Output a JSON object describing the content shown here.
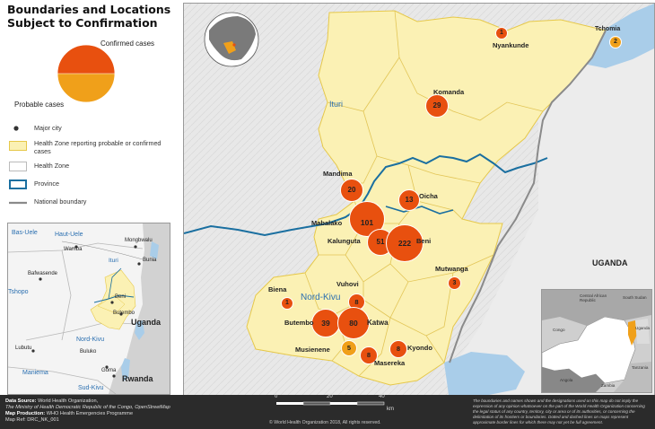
{
  "title": {
    "line1": "Boundaries and Locations",
    "line2": "Subject to Confirmation"
  },
  "pie_legend": {
    "confirmed_label": "Confirmed cases",
    "probable_label": "Probable cases",
    "confirmed_color": "#e8500f",
    "probable_color": "#f0a01a"
  },
  "legend": {
    "items": [
      {
        "icon": "city-dot-icon",
        "label": "Major city"
      },
      {
        "icon": "health-zone-affected-swatch",
        "label": "Health Zone reporting probable or confirmed cases"
      },
      {
        "icon": "health-zone-swatch",
        "label": "Health Zone"
      },
      {
        "icon": "province-line-icon",
        "label": "Province"
      },
      {
        "icon": "national-boundary-line-icon",
        "label": "National boundary"
      }
    ]
  },
  "colors": {
    "affected_zone": "#fbf1b4",
    "affected_zone_border": "#e6c84a",
    "province_line": "#1a6fa0",
    "national_boundary": "#8a8a8a",
    "water": "#a9cde9",
    "circle_fill": "#e8500f",
    "circle_probable": "#f0a01a",
    "terrain": "#e6e6e6"
  },
  "main_map": {
    "province_labels": [
      "Ituri",
      "Nord-Kivu"
    ],
    "country_label": "UGANDA",
    "localities": [
      {
        "name": "Nyankunde",
        "count": "1"
      },
      {
        "name": "Tchomia",
        "count": "2"
      },
      {
        "name": "Komanda",
        "count": "29"
      },
      {
        "name": "Mandima",
        "count": "20"
      },
      {
        "name": "Oicha",
        "count": "13"
      },
      {
        "name": "Mabalako",
        "count": "101"
      },
      {
        "name": "Kalunguta",
        "count": "51"
      },
      {
        "name": "Beni",
        "count": "222"
      },
      {
        "name": "Mutwanga",
        "count": "3"
      },
      {
        "name": "Biena",
        "count": "1"
      },
      {
        "name": "Vuhovi",
        "count": "8"
      },
      {
        "name": "Butembo",
        "count": "39"
      },
      {
        "name": "Katwa",
        "count": "80"
      },
      {
        "name": "Musienene",
        "count": "5"
      },
      {
        "name": "Kyondo",
        "count": "8"
      },
      {
        "name": "Masereka",
        "count": "8"
      }
    ]
  },
  "inset_left": {
    "province_labels": [
      "Bas-Uele",
      "Haut-Uele",
      "Ituri",
      "Tshopo",
      "Nord-Kivu",
      "Maniema",
      "Sud-Kivu"
    ],
    "country_labels": [
      "Uganda",
      "Rwanda"
    ],
    "cities": [
      "Wamba",
      "Mongbwalu",
      "Bunia",
      "Bafwasende",
      "Beni",
      "Butembo",
      "Lubutu",
      "Goma",
      "Buluko"
    ]
  },
  "inset_right": {
    "country_labels": [
      "Central African Republic",
      "South Sudan",
      "Congo",
      "Uganda",
      "Angola",
      "Zambia",
      "Tanzania"
    ]
  },
  "scale_bar": {
    "ticks": [
      "0",
      "20",
      "40"
    ],
    "unit": "km"
  },
  "footer": {
    "data_source_label": "Data Source:",
    "data_source_text": "World Health Organization,",
    "data_source_line2": "The Ministry of Health Democratic Republic of the Congo, OpenStreetMap",
    "production_label": "Map Production:",
    "production_text": "WHO Health Emergencies Programme",
    "map_id": "Map Ref: DRC_NK_001",
    "disclaimer": "The boundaries and names shown and the designations used on this map do not imply the expression of any opinion whatsoever on the part of the World Health Organization concerning the legal status of any country, territory, city or area or of its authorities, or concerning the delimitation of its frontiers or boundaries. Dotted and dashed lines on maps represent approximate border lines for which there may not yet be full agreement.",
    "copyright": "© World Health Organization 2018, All rights reserved."
  }
}
